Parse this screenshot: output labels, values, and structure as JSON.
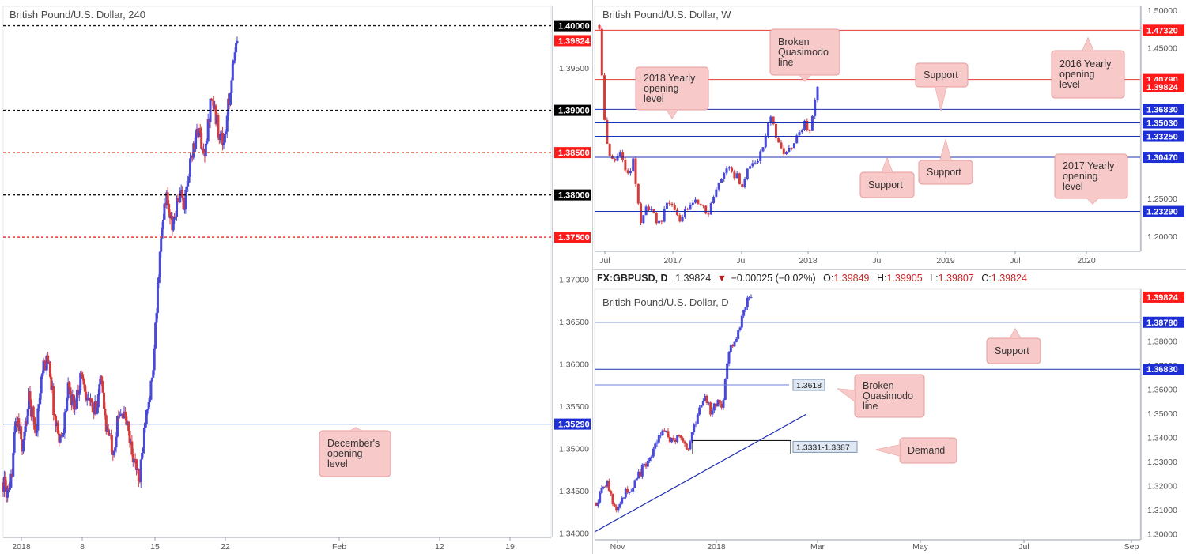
{
  "header": {
    "symbol": "FX:GBPUSD, D",
    "price": "1.39824",
    "arrow": "▼",
    "change": "−0.00025 (−0.02%)",
    "o_label": "O:",
    "o": "1.39849",
    "h_label": "H:",
    "h": "1.39905",
    "l_label": "L:",
    "l": "1.39807",
    "c_label": "C:",
    "c": "1.39824"
  },
  "colors": {
    "bull": "#4a4ad8",
    "bear": "#d43b3b",
    "blue_line": "#1c2fb0",
    "red_line": "#e53935",
    "label_red": "#ff1a1a",
    "label_blue": "#1d2fd4",
    "label_black": "#000000",
    "callout_fill": "#f8c9c9",
    "callout_stroke": "#e79a9a"
  },
  "chart_data": [
    {
      "id": "h4",
      "type": "candlestick",
      "title": "British Pound/U.S. Dollar, 240",
      "y_ticks": [
        "1.39500",
        "1.37000",
        "1.36500",
        "1.36000",
        "1.35500",
        "1.35000",
        "1.34500",
        "1.34000"
      ],
      "ylim": [
        1.3395,
        1.4023
      ],
      "x_ticks": [
        "2018",
        "8",
        "15",
        "22",
        "Feb",
        "12",
        "19"
      ],
      "levels": [
        {
          "value": 1.4,
          "label": "1.40000",
          "style": "black-dotted"
        },
        {
          "value": 1.39824,
          "label": "1.39824",
          "style": "price"
        },
        {
          "value": 1.39,
          "label": "1.39000",
          "style": "black-dotted"
        },
        {
          "value": 1.385,
          "label": "1.38500",
          "style": "red-dotted"
        },
        {
          "value": 1.38,
          "label": "1.38000",
          "style": "black-dotted"
        },
        {
          "value": 1.375,
          "label": "1.37500",
          "style": "red-dotted"
        },
        {
          "value": 1.3529,
          "label": "1.35290",
          "style": "blue-solid"
        }
      ],
      "annotations": [
        {
          "text": [
            "December's",
            "opening",
            "level"
          ]
        }
      ],
      "path": [
        1.346,
        1.344,
        1.354,
        1.35,
        1.356,
        1.352,
        1.359,
        1.361,
        1.353,
        1.351,
        1.357,
        1.355,
        1.359,
        1.356,
        1.354,
        1.358,
        1.352,
        1.35,
        1.355,
        1.353,
        1.349,
        1.346,
        1.355,
        1.358,
        1.372,
        1.38,
        1.376,
        1.38,
        1.379,
        1.385,
        1.388,
        1.384,
        1.392,
        1.388,
        1.386,
        1.393,
        1.3982
      ]
    },
    {
      "id": "weekly",
      "type": "candlestick",
      "title": "British Pound/U.S. Dollar, W",
      "y_ticks": [
        "1.50000",
        "1.45000",
        "1.25000",
        "1.20000"
      ],
      "ylim": [
        1.18,
        1.505
      ],
      "x_ticks": [
        "Jul",
        "2017",
        "Jul",
        "2018",
        "Jul",
        "2019",
        "Jul",
        "2020"
      ],
      "levels": [
        {
          "value": 1.4732,
          "label": "1.47320",
          "style": "red-solid"
        },
        {
          "value": 1.4079,
          "label": "1.40790",
          "style": "red-solid"
        },
        {
          "value": 1.39824,
          "label": "1.39824",
          "style": "price"
        },
        {
          "value": 1.3683,
          "label": "1.36830",
          "style": "blue-solid"
        },
        {
          "value": 1.3503,
          "label": "1.35030",
          "style": "blue-solid"
        },
        {
          "value": 1.3325,
          "label": "1.33250",
          "style": "blue-solid"
        },
        {
          "value": 1.3047,
          "label": "1.30470",
          "style": "blue-solid"
        },
        {
          "value": 1.2329,
          "label": "1.23290",
          "style": "blue-solid"
        }
      ],
      "annotations": [
        {
          "text": [
            "Broken",
            "Quasimodo",
            "line"
          ]
        },
        {
          "text": [
            "2018 Yearly",
            "opening",
            "level"
          ]
        },
        {
          "text": [
            "Support"
          ]
        },
        {
          "text": [
            "2016 Yearly",
            "opening",
            "level"
          ]
        },
        {
          "text": [
            "Support"
          ]
        },
        {
          "text": [
            "Support"
          ]
        },
        {
          "text": [
            "2017 Yearly",
            "opening",
            "level"
          ]
        }
      ],
      "path": [
        1.48,
        1.32,
        1.3,
        1.31,
        1.28,
        1.3,
        1.22,
        1.24,
        1.23,
        1.21,
        1.25,
        1.23,
        1.22,
        1.24,
        1.25,
        1.24,
        1.23,
        1.26,
        1.28,
        1.29,
        1.28,
        1.27,
        1.29,
        1.3,
        1.32,
        1.36,
        1.33,
        1.31,
        1.32,
        1.33,
        1.35,
        1.34,
        1.3982
      ]
    },
    {
      "id": "daily",
      "type": "candlestick",
      "title": "British Pound/U.S. Dollar, D",
      "y_ticks": [
        "1.38000",
        "1.37000",
        "1.36000",
        "1.35000",
        "1.34000",
        "1.33000",
        "1.32000",
        "1.31000",
        "1.30000"
      ],
      "ylim": [
        1.2975,
        1.4015
      ],
      "x_ticks": [
        "Nov",
        "2018",
        "Mar",
        "May",
        "Jul",
        "Sep"
      ],
      "levels": [
        {
          "value": 1.39824,
          "label": "1.39824",
          "style": "price"
        },
        {
          "value": 1.3878,
          "label": "1.38780",
          "style": "blue-solid"
        },
        {
          "value": 1.3683,
          "label": "1.36830",
          "style": "blue-solid"
        },
        {
          "value": 1.3618,
          "label": "1.3618",
          "style": "blue-boxed"
        }
      ],
      "zone": {
        "low": 1.3331,
        "high": 1.3387,
        "label": "1.3331-1.3387"
      },
      "annotations": [
        {
          "text": [
            "Support"
          ]
        },
        {
          "text": [
            "Broken",
            "Quasimodo",
            "line"
          ]
        },
        {
          "text": [
            "Demand"
          ]
        }
      ],
      "path": [
        1.313,
        1.318,
        1.322,
        1.312,
        1.309,
        1.318,
        1.316,
        1.322,
        1.327,
        1.33,
        1.334,
        1.341,
        1.344,
        1.338,
        1.339,
        1.34,
        1.335,
        1.345,
        1.352,
        1.357,
        1.35,
        1.355,
        1.352,
        1.376,
        1.38,
        1.385,
        1.395,
        1.3982
      ]
    }
  ]
}
